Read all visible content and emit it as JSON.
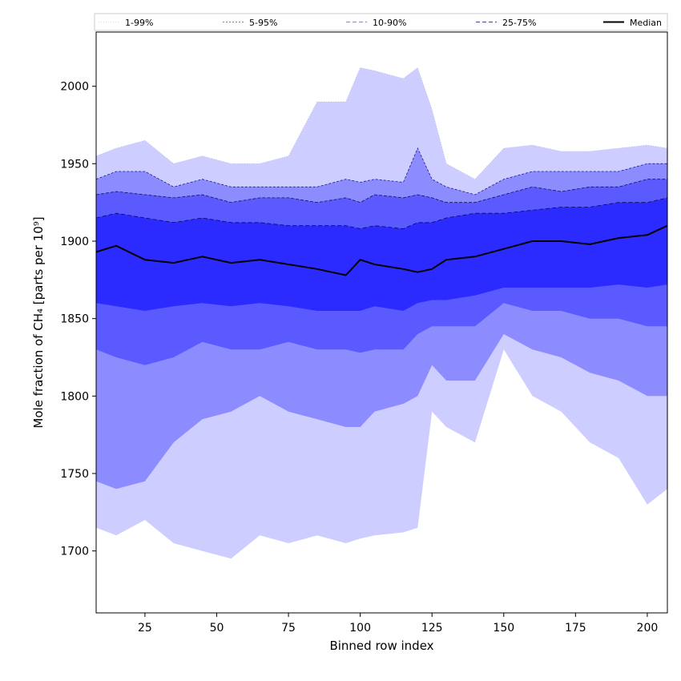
{
  "chart_data": {
    "type": "area",
    "xlabel": "Binned row index",
    "ylabel": "Mole fraction of CH₄ [parts per 10⁹]",
    "xlim": [
      8,
      207
    ],
    "ylim": [
      1660,
      2035
    ],
    "xticks": [
      25,
      50,
      75,
      100,
      125,
      150,
      175,
      200
    ],
    "yticks": [
      1700,
      1750,
      1800,
      1850,
      1900,
      1950,
      2000
    ],
    "grid": false,
    "legend_position": "top",
    "legend": [
      {
        "label": "1-99%",
        "style": "dotted-thin",
        "color": "#c8c8ff"
      },
      {
        "label": "5-95%",
        "style": "dashed-thin",
        "color": "#4444dd"
      },
      {
        "label": "10-90%",
        "style": "dashed",
        "color": "#8c8cff"
      },
      {
        "label": "25-75%",
        "style": "dashed",
        "color": "#4b4bff"
      },
      {
        "label": "Median",
        "style": "solid",
        "color": "#000000"
      }
    ],
    "x": [
      8,
      15,
      25,
      35,
      45,
      55,
      65,
      75,
      85,
      95,
      100,
      105,
      115,
      120,
      125,
      130,
      140,
      150,
      160,
      170,
      180,
      190,
      200,
      207
    ],
    "series": [
      {
        "name": "1-99%",
        "fill": "#cdcdff",
        "lower": [
          1715,
          1710,
          1720,
          1705,
          1700,
          1695,
          1710,
          1705,
          1710,
          1705,
          1708,
          1710,
          1712,
          1715,
          1790,
          1780,
          1770,
          1830,
          1800,
          1790,
          1770,
          1760,
          1730,
          1740
        ],
        "upper": [
          1955,
          1960,
          1965,
          1950,
          1955,
          1950,
          1950,
          1955,
          1990,
          1990,
          2012,
          2010,
          2005,
          2012,
          1985,
          1950,
          1940,
          1960,
          1962,
          1958,
          1958,
          1960,
          1962,
          1960
        ]
      },
      {
        "name": "5-95%",
        "fill": "#8c8cff",
        "lower": [
          1745,
          1740,
          1745,
          1770,
          1785,
          1790,
          1800,
          1790,
          1785,
          1780,
          1780,
          1790,
          1795,
          1800,
          1820,
          1810,
          1810,
          1840,
          1830,
          1825,
          1815,
          1810,
          1800,
          1800
        ],
        "upper": [
          1940,
          1945,
          1945,
          1935,
          1940,
          1935,
          1935,
          1935,
          1935,
          1940,
          1938,
          1940,
          1938,
          1960,
          1940,
          1935,
          1930,
          1940,
          1945,
          1945,
          1945,
          1945,
          1950,
          1950
        ]
      },
      {
        "name": "10-90%",
        "fill": "#5a5aff",
        "lower": [
          1830,
          1825,
          1820,
          1825,
          1835,
          1830,
          1830,
          1835,
          1830,
          1830,
          1828,
          1830,
          1830,
          1840,
          1845,
          1845,
          1845,
          1860,
          1855,
          1855,
          1850,
          1850,
          1845,
          1845
        ],
        "upper": [
          1930,
          1932,
          1930,
          1928,
          1930,
          1925,
          1928,
          1928,
          1925,
          1928,
          1925,
          1930,
          1928,
          1930,
          1928,
          1925,
          1925,
          1930,
          1935,
          1932,
          1935,
          1935,
          1940,
          1940
        ]
      },
      {
        "name": "25-75%",
        "fill": "#2b2bff",
        "lower": [
          1860,
          1858,
          1855,
          1858,
          1860,
          1858,
          1860,
          1858,
          1855,
          1855,
          1855,
          1858,
          1855,
          1860,
          1862,
          1862,
          1865,
          1870,
          1870,
          1870,
          1870,
          1872,
          1870,
          1872
        ],
        "upper": [
          1915,
          1918,
          1915,
          1912,
          1915,
          1912,
          1912,
          1910,
          1910,
          1910,
          1908,
          1910,
          1908,
          1912,
          1912,
          1915,
          1918,
          1918,
          1920,
          1922,
          1922,
          1925,
          1925,
          1928
        ]
      },
      {
        "name": "Median",
        "stroke": "#000000",
        "values": [
          1893,
          1897,
          1888,
          1886,
          1890,
          1886,
          1888,
          1885,
          1882,
          1878,
          1888,
          1885,
          1882,
          1880,
          1882,
          1888,
          1890,
          1895,
          1900,
          1900,
          1898,
          1902,
          1904,
          1910
        ]
      }
    ]
  }
}
